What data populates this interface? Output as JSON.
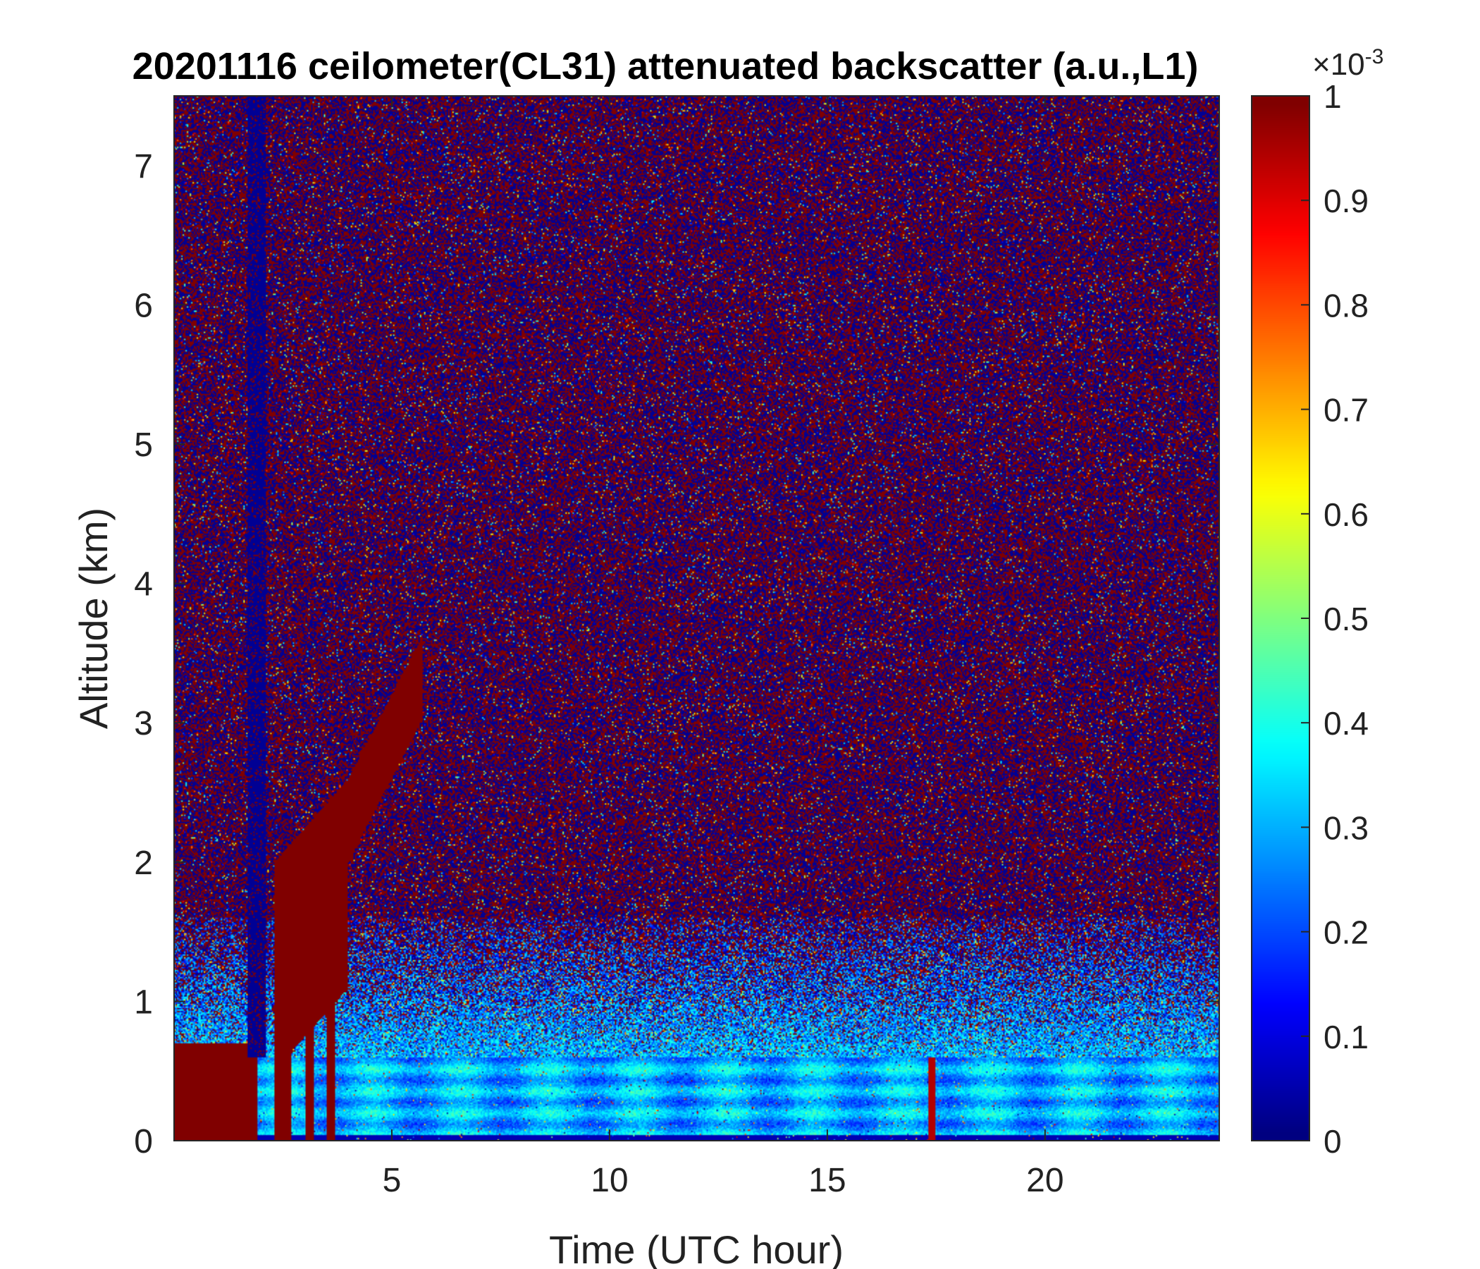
{
  "chart_data": {
    "type": "heatmap",
    "title": "20201116 ceilometer(CL31) attenuated backscatter (a.u.,L1)",
    "xlabel": "Time (UTC hour)",
    "ylabel": "Altitude (km)",
    "xlim": [
      0,
      24
    ],
    "ylim": [
      0,
      7.5
    ],
    "x_ticks": [
      5,
      10,
      15,
      20
    ],
    "y_ticks": [
      0,
      1,
      2,
      3,
      4,
      5,
      6,
      7
    ],
    "colormap": "jet",
    "colorbar": {
      "range": [
        0,
        0.001
      ],
      "exponent_label": "×10",
      "exponent_value": "-3",
      "ticks": [
        "0",
        "0.1",
        "0.2",
        "0.3",
        "0.4",
        "0.5",
        "0.6",
        "0.7",
        "0.8",
        "0.9",
        "1"
      ]
    },
    "features": {
      "noise_regime": "random noise (dark blue / dark red speckle) above ~1.5 km",
      "boundary_layer_top_km": 0.6,
      "boundary_layer_value": 0.0003,
      "early_cloud_region": {
        "x_range": [
          0,
          5.7
        ],
        "heights_km": [
          0.7,
          2.0,
          3.6
        ],
        "value": 0.001
      },
      "cloud_spike": {
        "x": 17.4,
        "height_km": 0.6
      }
    }
  }
}
